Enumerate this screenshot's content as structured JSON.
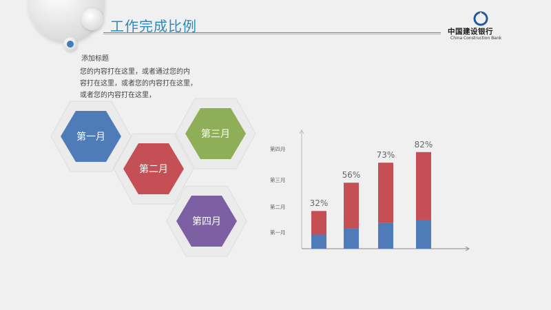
{
  "header": {
    "title": "工作完成比例"
  },
  "logo": {
    "name_cn": "中国建设银行",
    "name_en": "China Construction Bank"
  },
  "content": {
    "subtitle": "添加标题",
    "body_lines": [
      "您的内容打在这里，或者通过您的内",
      "容打在这里，或者您的内容打在这里，",
      "或者您的内容打在这里，"
    ]
  },
  "hexagons": [
    {
      "label": "第一月",
      "color": "#4f7cb8"
    },
    {
      "label": "第二月",
      "color": "#c44f55"
    },
    {
      "label": "第三月",
      "color": "#8eaf58"
    },
    {
      "label": "第四月",
      "color": "#7d5fa3"
    }
  ],
  "chart_data": {
    "type": "bar",
    "stacked": true,
    "categories": [
      "第一月",
      "第二月",
      "第三月",
      "第四月"
    ],
    "y_tick_labels": [
      "第一月",
      "第二月",
      "第三月",
      "第四月"
    ],
    "value_labels": [
      "32%",
      "56%",
      "73%",
      "82%"
    ],
    "series": [
      {
        "values": [
          12,
          17,
          22,
          24
        ],
        "color": "#4f7cb8"
      },
      {
        "values": [
          20,
          39,
          51,
          58
        ],
        "color": "#c44f55"
      }
    ],
    "totals": [
      32,
      56,
      73,
      82
    ],
    "ylim": [
      0,
      100
    ]
  }
}
